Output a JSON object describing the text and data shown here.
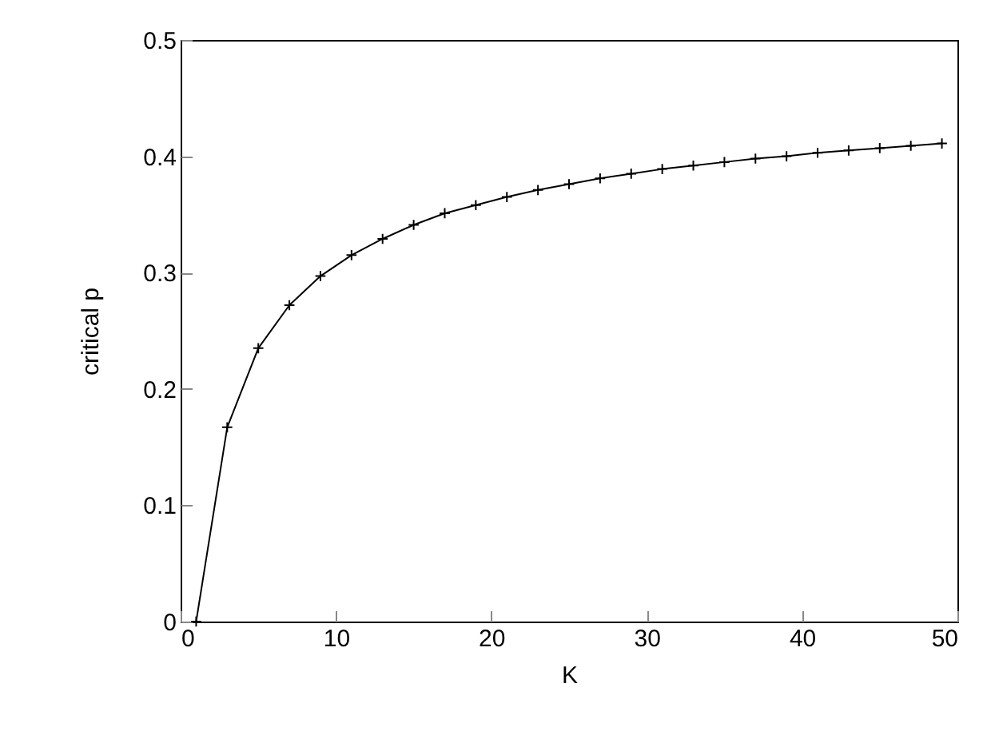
{
  "chart_data": {
    "type": "line",
    "xlabel": "K",
    "ylabel": "critical p",
    "x": [
      1,
      3,
      5,
      7,
      9,
      11,
      13,
      15,
      17,
      19,
      21,
      23,
      25,
      27,
      29,
      31,
      33,
      35,
      37,
      39,
      41,
      43,
      45,
      47,
      49
    ],
    "series": [
      {
        "color": "#000000",
        "values": [
          0,
          0.167,
          0.235,
          0.272,
          0.297,
          0.315,
          0.329,
          0.341,
          0.351,
          0.358,
          0.365,
          0.371,
          0.376,
          0.381,
          0.385,
          0.389,
          0.392,
          0.395,
          0.398,
          0.4,
          0.403,
          0.405,
          0.407,
          0.409,
          0.411
        ]
      }
    ],
    "xlim": [
      0,
      50
    ],
    "xticks": [
      0,
      10,
      20,
      30,
      40,
      50
    ],
    "ylim": [
      0,
      0.5
    ],
    "yticks": [
      0,
      0.1,
      0.2,
      0.3,
      0.4,
      0.5
    ],
    "marker": "cross",
    "line_style": "solid",
    "grid": false
  }
}
